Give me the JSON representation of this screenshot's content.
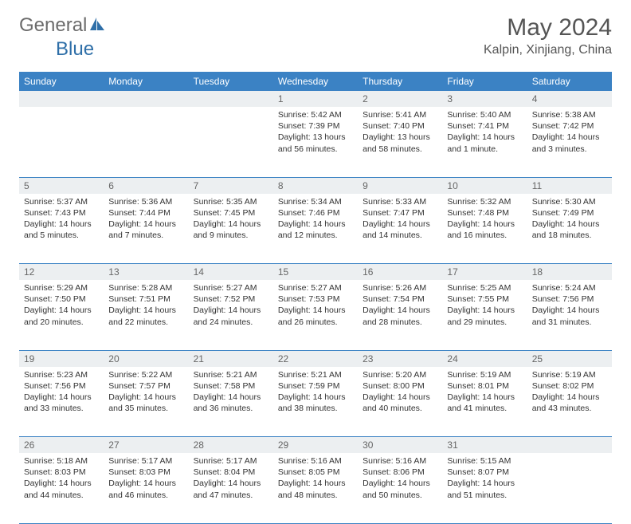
{
  "brand": {
    "word1": "General",
    "word2": "Blue"
  },
  "title": "May 2024",
  "location": "Kalpin, Xinjiang, China",
  "colors": {
    "header_bg": "#3b82c4",
    "header_text": "#ffffff",
    "daynum_bg": "#eceff1",
    "border": "#3b82c4",
    "logo_gray": "#6b6b6b",
    "logo_blue": "#2f6fa8"
  },
  "weekdays": [
    "Sunday",
    "Monday",
    "Tuesday",
    "Wednesday",
    "Thursday",
    "Friday",
    "Saturday"
  ],
  "weeks": [
    [
      null,
      null,
      null,
      {
        "n": "1",
        "sunrise": "5:42 AM",
        "sunset": "7:39 PM",
        "daylight": "13 hours and 56 minutes."
      },
      {
        "n": "2",
        "sunrise": "5:41 AM",
        "sunset": "7:40 PM",
        "daylight": "13 hours and 58 minutes."
      },
      {
        "n": "3",
        "sunrise": "5:40 AM",
        "sunset": "7:41 PM",
        "daylight": "14 hours and 1 minute."
      },
      {
        "n": "4",
        "sunrise": "5:38 AM",
        "sunset": "7:42 PM",
        "daylight": "14 hours and 3 minutes."
      }
    ],
    [
      {
        "n": "5",
        "sunrise": "5:37 AM",
        "sunset": "7:43 PM",
        "daylight": "14 hours and 5 minutes."
      },
      {
        "n": "6",
        "sunrise": "5:36 AM",
        "sunset": "7:44 PM",
        "daylight": "14 hours and 7 minutes."
      },
      {
        "n": "7",
        "sunrise": "5:35 AM",
        "sunset": "7:45 PM",
        "daylight": "14 hours and 9 minutes."
      },
      {
        "n": "8",
        "sunrise": "5:34 AM",
        "sunset": "7:46 PM",
        "daylight": "14 hours and 12 minutes."
      },
      {
        "n": "9",
        "sunrise": "5:33 AM",
        "sunset": "7:47 PM",
        "daylight": "14 hours and 14 minutes."
      },
      {
        "n": "10",
        "sunrise": "5:32 AM",
        "sunset": "7:48 PM",
        "daylight": "14 hours and 16 minutes."
      },
      {
        "n": "11",
        "sunrise": "5:30 AM",
        "sunset": "7:49 PM",
        "daylight": "14 hours and 18 minutes."
      }
    ],
    [
      {
        "n": "12",
        "sunrise": "5:29 AM",
        "sunset": "7:50 PM",
        "daylight": "14 hours and 20 minutes."
      },
      {
        "n": "13",
        "sunrise": "5:28 AM",
        "sunset": "7:51 PM",
        "daylight": "14 hours and 22 minutes."
      },
      {
        "n": "14",
        "sunrise": "5:27 AM",
        "sunset": "7:52 PM",
        "daylight": "14 hours and 24 minutes."
      },
      {
        "n": "15",
        "sunrise": "5:27 AM",
        "sunset": "7:53 PM",
        "daylight": "14 hours and 26 minutes."
      },
      {
        "n": "16",
        "sunrise": "5:26 AM",
        "sunset": "7:54 PM",
        "daylight": "14 hours and 28 minutes."
      },
      {
        "n": "17",
        "sunrise": "5:25 AM",
        "sunset": "7:55 PM",
        "daylight": "14 hours and 29 minutes."
      },
      {
        "n": "18",
        "sunrise": "5:24 AM",
        "sunset": "7:56 PM",
        "daylight": "14 hours and 31 minutes."
      }
    ],
    [
      {
        "n": "19",
        "sunrise": "5:23 AM",
        "sunset": "7:56 PM",
        "daylight": "14 hours and 33 minutes."
      },
      {
        "n": "20",
        "sunrise": "5:22 AM",
        "sunset": "7:57 PM",
        "daylight": "14 hours and 35 minutes."
      },
      {
        "n": "21",
        "sunrise": "5:21 AM",
        "sunset": "7:58 PM",
        "daylight": "14 hours and 36 minutes."
      },
      {
        "n": "22",
        "sunrise": "5:21 AM",
        "sunset": "7:59 PM",
        "daylight": "14 hours and 38 minutes."
      },
      {
        "n": "23",
        "sunrise": "5:20 AM",
        "sunset": "8:00 PM",
        "daylight": "14 hours and 40 minutes."
      },
      {
        "n": "24",
        "sunrise": "5:19 AM",
        "sunset": "8:01 PM",
        "daylight": "14 hours and 41 minutes."
      },
      {
        "n": "25",
        "sunrise": "5:19 AM",
        "sunset": "8:02 PM",
        "daylight": "14 hours and 43 minutes."
      }
    ],
    [
      {
        "n": "26",
        "sunrise": "5:18 AM",
        "sunset": "8:03 PM",
        "daylight": "14 hours and 44 minutes."
      },
      {
        "n": "27",
        "sunrise": "5:17 AM",
        "sunset": "8:03 PM",
        "daylight": "14 hours and 46 minutes."
      },
      {
        "n": "28",
        "sunrise": "5:17 AM",
        "sunset": "8:04 PM",
        "daylight": "14 hours and 47 minutes."
      },
      {
        "n": "29",
        "sunrise": "5:16 AM",
        "sunset": "8:05 PM",
        "daylight": "14 hours and 48 minutes."
      },
      {
        "n": "30",
        "sunrise": "5:16 AM",
        "sunset": "8:06 PM",
        "daylight": "14 hours and 50 minutes."
      },
      {
        "n": "31",
        "sunrise": "5:15 AM",
        "sunset": "8:07 PM",
        "daylight": "14 hours and 51 minutes."
      },
      null
    ]
  ],
  "labels": {
    "sunrise": "Sunrise:",
    "sunset": "Sunset:",
    "daylight": "Daylight:"
  }
}
